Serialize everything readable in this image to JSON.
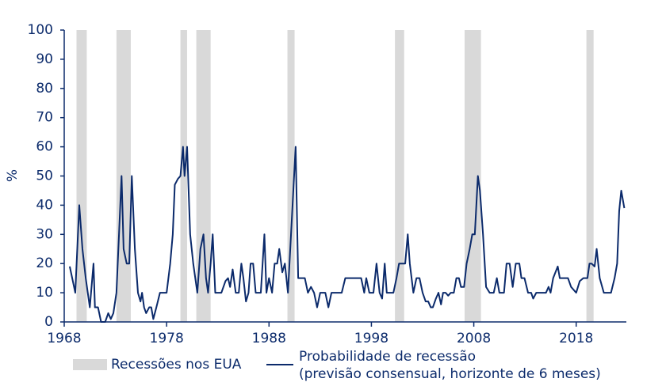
{
  "chart_data": {
    "type": "line",
    "ylabel": "%",
    "xlim": [
      1968,
      2022.9
    ],
    "xticks": [
      1968,
      1978,
      1988,
      1998,
      2008,
      2018
    ],
    "ylim": [
      0,
      100
    ],
    "yticks": [
      0,
      10,
      20,
      30,
      40,
      50,
      60,
      70,
      80,
      90,
      100
    ],
    "bands": {
      "name": "Recessões nos EUA",
      "color": "#d9d9d9",
      "ranges": [
        [
          1969.2,
          1970.2
        ],
        [
          1973.1,
          1974.5
        ],
        [
          1979.35,
          1980.0
        ],
        [
          1980.9,
          1982.3
        ],
        [
          1989.8,
          1990.5
        ],
        [
          2000.3,
          2001.2
        ],
        [
          2007.1,
          2008.7
        ],
        [
          2019.0,
          2019.7
        ]
      ]
    },
    "x": [
      1968.54,
      1969.08,
      1969.47,
      1969.78,
      1970.1,
      1970.5,
      1970.86,
      1971.0,
      1971.3,
      1971.6,
      1972.0,
      1972.3,
      1972.55,
      1972.8,
      1973.1,
      1973.6,
      1973.8,
      1974.1,
      1974.35,
      1974.6,
      1974.9,
      1975.2,
      1975.45,
      1975.6,
      1975.8,
      1976.0,
      1976.3,
      1976.5,
      1976.7,
      1977.0,
      1977.35,
      1977.7,
      1978.0,
      1978.35,
      1978.6,
      1978.8,
      1979.1,
      1979.35,
      1979.6,
      1979.75,
      1980.0,
      1980.3,
      1980.6,
      1981.0,
      1981.3,
      1981.6,
      1981.85,
      1982.05,
      1982.3,
      1982.5,
      1982.75,
      1983.35,
      1983.75,
      1984.0,
      1984.2,
      1984.45,
      1984.75,
      1985.05,
      1985.3,
      1985.5,
      1985.75,
      1986.0,
      1986.2,
      1986.45,
      1986.7,
      1987.2,
      1987.55,
      1987.75,
      1988.0,
      1988.3,
      1988.55,
      1988.8,
      1989.0,
      1989.3,
      1989.55,
      1989.85,
      1990.15,
      1990.6,
      1990.85,
      1991.5,
      1991.8,
      1992.1,
      1992.4,
      1992.7,
      1993.0,
      1993.5,
      1993.8,
      1994.1,
      1995.1,
      1995.45,
      1997.0,
      1997.3,
      1997.5,
      1997.8,
      1998.2,
      1998.5,
      1998.8,
      1999.05,
      1999.3,
      1999.5,
      2000.15,
      2000.45,
      2000.7,
      2001.3,
      2001.55,
      2001.75,
      2002.1,
      2002.4,
      2002.7,
      2003.0,
      2003.3,
      2003.55,
      2003.8,
      2004.0,
      2004.3,
      2004.55,
      2004.8,
      2005.0,
      2005.25,
      2005.5,
      2005.75,
      2006.05,
      2006.3,
      2006.55,
      2006.75,
      2007.05,
      2007.3,
      2007.6,
      2007.85,
      2008.1,
      2008.4,
      2008.6,
      2008.9,
      2009.2,
      2009.55,
      2009.95,
      2010.25,
      2010.5,
      2010.95,
      2011.2,
      2011.5,
      2011.8,
      2012.1,
      2012.45,
      2012.65,
      2012.95,
      2013.3,
      2013.6,
      2013.8,
      2014.1,
      2015.05,
      2015.3,
      2015.5,
      2015.75,
      2016.2,
      2016.4,
      2017.2,
      2017.5,
      2018.0,
      2018.35,
      2018.7,
      2019.1,
      2019.3,
      2019.5,
      2019.8,
      2020.0,
      2020.3,
      2020.7,
      2021.4,
      2021.75,
      2022.0,
      2022.2,
      2022.4,
      2022.7
    ],
    "series": [
      {
        "name": "Probabilidade de recessão\n(previsão consensual, horizonte de 6 meses)",
        "color": "#0b2a6b",
        "values": [
          19,
          10,
          40,
          25,
          15,
          5,
          20,
          5,
          5,
          0,
          0,
          3,
          1,
          3,
          10,
          50,
          25,
          20,
          20,
          50,
          25,
          10,
          7,
          10,
          5,
          3,
          5,
          5,
          1,
          5,
          10,
          10,
          10,
          20,
          30,
          47,
          49,
          50,
          60,
          50,
          60,
          30,
          20,
          10,
          25,
          30,
          15,
          10,
          20,
          30,
          10,
          10,
          14,
          15,
          12,
          18,
          10,
          10,
          20,
          15,
          7,
          10,
          20,
          20,
          10,
          10,
          30,
          10,
          15,
          10,
          20,
          20,
          25,
          17,
          20,
          10,
          30,
          60,
          15,
          15,
          10,
          12,
          10,
          5,
          10,
          10,
          5,
          10,
          10,
          15,
          15,
          10,
          15,
          10,
          10,
          20,
          10,
          8,
          20,
          10,
          10,
          15,
          20,
          20,
          30,
          20,
          10,
          15,
          15,
          10,
          7,
          7,
          5,
          5,
          8,
          10,
          6,
          10,
          10,
          9,
          10,
          10,
          15,
          15,
          12,
          12,
          20,
          25,
          30,
          30,
          50,
          45,
          30,
          12,
          10,
          10,
          15,
          10,
          10,
          20,
          20,
          12,
          20,
          20,
          15,
          15,
          10,
          10,
          8,
          10,
          10,
          12,
          10,
          15,
          19,
          15,
          15,
          12,
          10,
          14,
          15,
          15,
          20,
          20,
          19,
          25,
          15,
          10,
          10,
          15,
          20,
          38,
          45,
          39
        ]
      }
    ]
  }
}
